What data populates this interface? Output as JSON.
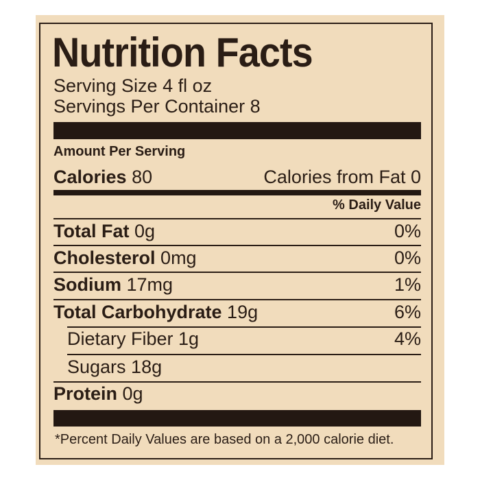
{
  "title": "Nutrition Facts",
  "serving_size": "Serving Size 4 fl oz",
  "servings_per_container": "Servings Per Container 8",
  "amount_per_serving": "Amount Per Serving",
  "calories": {
    "label": "Calories",
    "value": "80",
    "from_fat": "Calories from Fat 0"
  },
  "daily_value_header": "% Daily Value",
  "nutrients": [
    {
      "label": "Total Fat",
      "amount": "0g",
      "dv": "0%"
    },
    {
      "label": "Cholesterol",
      "amount": "0mg",
      "dv": "0%"
    },
    {
      "label": "Sodium",
      "amount": "17mg",
      "dv": "1%"
    },
    {
      "label": "Total Carbohydrate",
      "amount": "19g",
      "dv": "6%"
    },
    {
      "label": "Dietary Fiber 1g",
      "amount": "",
      "dv": "4%"
    },
    {
      "label": "Sugars 18g",
      "amount": "",
      "dv": ""
    },
    {
      "label": "Protein",
      "amount": "0g",
      "dv": ""
    }
  ],
  "footnote": "*Percent Daily Values are based on a 2,000 calorie diet.",
  "colors": {
    "background": "#f1dcbc",
    "ink": "#2a1d15"
  }
}
